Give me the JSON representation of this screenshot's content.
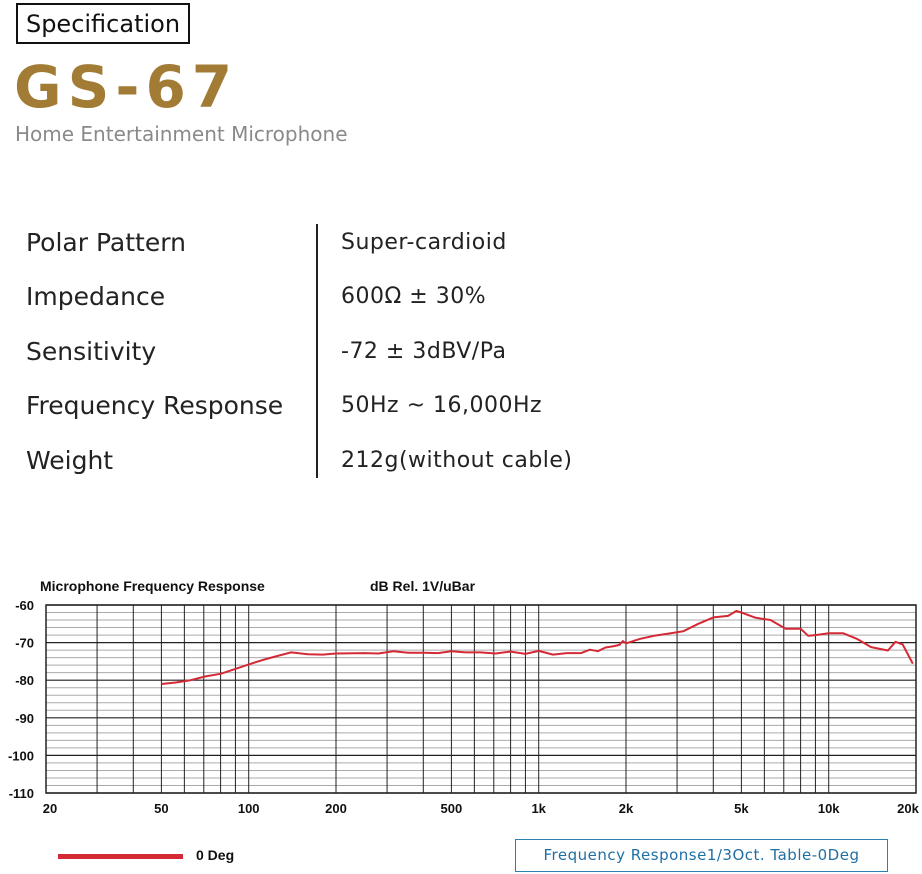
{
  "header": {
    "tag": "Specification",
    "model": "GS-67",
    "subtitle": "Home Entertainment Microphone",
    "model_color": "#a27c35"
  },
  "specs": [
    {
      "label": "Polar Pattern",
      "value": "Super-cardioid"
    },
    {
      "label": "Impedance",
      "value": "600Ω ± 30%"
    },
    {
      "label": "Sensitivity",
      "value": "-72 ± 3dBV/Pa"
    },
    {
      "label": "Frequency Response",
      "value": "50Hz ~ 16,000Hz"
    },
    {
      "label": "Weight",
      "value": "212g(without cable)"
    }
  ],
  "chart_data": {
    "type": "line",
    "title": "Microphone Frequency Response",
    "ylabel": "dB Rel. 1V/uBar",
    "xlabel": "",
    "x_scale": "log",
    "xlim": [
      20,
      20000
    ],
    "ylim": [
      -110,
      -60
    ],
    "x_tick_labels": [
      "20",
      "50",
      "100",
      "200",
      "500",
      "1k",
      "2k",
      "5k",
      "10k",
      "20k"
    ],
    "x_tick_values": [
      20,
      50,
      100,
      200,
      500,
      1000,
      2000,
      5000,
      10000,
      20000
    ],
    "y_tick_labels": [
      "-60",
      "-70",
      "-80",
      "-90",
      "-100",
      "-110"
    ],
    "y_tick_values": [
      -60,
      -70,
      -80,
      -90,
      -100,
      -110
    ],
    "grid": true,
    "legend": "bottom-left",
    "series": [
      {
        "name": "0 Deg",
        "color": "#d42a35",
        "x": [
          50,
          56,
          63,
          71,
          80,
          90,
          100,
          112,
          125,
          140,
          160,
          180,
          200,
          250,
          280,
          315,
          355,
          400,
          450,
          500,
          560,
          630,
          710,
          800,
          900,
          1000,
          1120,
          1250,
          1400,
          1500,
          1600,
          1700,
          1800,
          1900,
          1950,
          2000,
          2240,
          2500,
          2800,
          3150,
          3550,
          4000,
          4500,
          4800,
          5000,
          5600,
          6300,
          7100,
          8000,
          8500,
          9000,
          10000,
          11200,
          12500,
          14000,
          16000,
          17000,
          18000,
          19500
        ],
        "y": [
          -81,
          -80.6,
          -80,
          -79,
          -78.3,
          -77,
          -75.8,
          -74.6,
          -73.6,
          -72.6,
          -73.1,
          -73.2,
          -72.9,
          -72.8,
          -72.9,
          -72.3,
          -72.7,
          -72.7,
          -72.8,
          -72.3,
          -72.6,
          -72.6,
          -72.9,
          -72.4,
          -73,
          -72.2,
          -73.2,
          -72.8,
          -72.8,
          -71.9,
          -72.3,
          -71.3,
          -71,
          -70.6,
          -69.6,
          -70.2,
          -69,
          -68.2,
          -67.6,
          -67,
          -65,
          -63.3,
          -62.9,
          -61.6,
          -62,
          -63.4,
          -64,
          -66.3,
          -66.3,
          -68.2,
          -68,
          -67.5,
          -67.5,
          -69,
          -71.2,
          -72.1,
          -69.8,
          -70.5,
          -75.6
        ]
      }
    ]
  },
  "legend": {
    "label": "0 Deg"
  },
  "table_link": {
    "label": "Frequency Response1/3Oct. Table-0Deg"
  }
}
